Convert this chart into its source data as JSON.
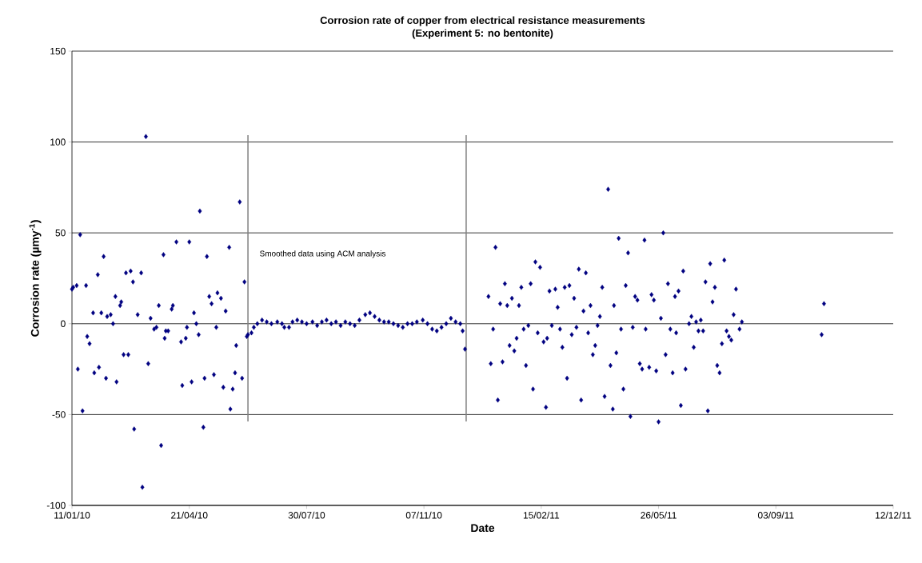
{
  "chart_data": {
    "type": "scatter",
    "title": "Corrosion rate of copper from electrical resistance measurements",
    "subtitle": "(Experiment 5: no bentonite)",
    "xlabel": "Date",
    "ylabel": "Corrosion rate (µmy$^{-1}$)",
    "xlim": [
      "2010-01-11",
      "2011-12-12"
    ],
    "ylim": [
      -100,
      150
    ],
    "xticks": [
      {
        "value": "2010-01-11",
        "label": "11/01/10"
      },
      {
        "value": "2010-04-21",
        "label": "21/04/10"
      },
      {
        "value": "2010-07-30",
        "label": "30/07/10"
      },
      {
        "value": "2010-11-07",
        "label": "07/11/10"
      },
      {
        "value": "2011-02-15",
        "label": "15/02/11"
      },
      {
        "value": "2011-05-26",
        "label": "26/05/11"
      },
      {
        "value": "2011-09-03",
        "label": "03/09/11"
      },
      {
        "value": "2011-12-12",
        "label": "12/12/11"
      }
    ],
    "yticks": [
      -100,
      -50,
      0,
      50,
      100,
      150
    ],
    "grid": "y",
    "marker": "diamond",
    "color": "#000080",
    "annotations": [
      "Smoothed data using ACM analysis"
    ],
    "ref_lines": [
      {
        "axis": "x",
        "value": "2010-06-10",
        "color": "#808080"
      },
      {
        "axis": "x",
        "value": "2010-12-13",
        "color": "#808080"
      }
    ],
    "x": [
      "2010-01-11",
      "2010-01-12",
      "2010-01-15",
      "2010-01-18",
      "2010-01-16",
      "2010-01-20",
      "2010-01-23",
      "2010-01-24",
      "2010-01-26",
      "2010-01-29",
      "2010-01-30",
      "2010-02-02",
      "2010-02-03",
      "2010-02-05",
      "2010-02-07",
      "2010-02-09",
      "2010-02-10",
      "2010-02-13",
      "2010-02-15",
      "2010-02-17",
      "2010-02-18",
      "2010-02-21",
      "2010-02-22",
      "2010-02-24",
      "2010-02-26",
      "2010-02-28",
      "2010-03-02",
      "2010-03-04",
      "2010-03-05",
      "2010-03-08",
      "2010-03-11",
      "2010-03-12",
      "2010-03-15",
      "2010-03-17",
      "2010-03-19",
      "2010-03-22",
      "2010-03-24",
      "2010-03-26",
      "2010-03-28",
      "2010-03-30",
      "2010-03-31",
      "2010-04-01",
      "2010-04-03",
      "2010-04-06",
      "2010-04-07",
      "2010-04-10",
      "2010-04-14",
      "2010-04-15",
      "2010-04-18",
      "2010-04-19",
      "2010-04-21",
      "2010-04-23",
      "2010-04-25",
      "2010-04-27",
      "2010-04-29",
      "2010-04-30",
      "2010-05-03",
      "2010-05-04",
      "2010-05-06",
      "2010-05-08",
      "2010-05-10",
      "2010-05-12",
      "2010-05-14",
      "2010-05-15",
      "2010-05-18",
      "2010-05-20",
      "2010-05-22",
      "2010-05-25",
      "2010-05-26",
      "2010-05-28",
      "2010-05-30",
      "2010-05-31",
      "2010-06-03",
      "2010-06-05",
      "2010-06-07",
      "2010-06-09",
      "2010-06-10",
      "2010-06-13",
      "2010-06-15",
      "2010-06-18",
      "2010-06-22",
      "2010-06-26",
      "2010-06-30",
      "2010-07-05",
      "2010-07-09",
      "2010-07-11",
      "2010-07-15",
      "2010-07-18",
      "2010-07-22",
      "2010-07-26",
      "2010-07-30",
      "2010-08-04",
      "2010-08-08",
      "2010-08-12",
      "2010-08-16",
      "2010-08-20",
      "2010-08-24",
      "2010-08-28",
      "2010-09-01",
      "2010-09-05",
      "2010-09-09",
      "2010-09-13",
      "2010-09-18",
      "2010-09-22",
      "2010-09-26",
      "2010-09-30",
      "2010-10-04",
      "2010-10-08",
      "2010-10-12",
      "2010-10-16",
      "2010-10-20",
      "2010-10-24",
      "2010-10-28",
      "2010-11-01",
      "2010-11-06",
      "2010-11-10",
      "2010-11-14",
      "2010-11-18",
      "2010-11-22",
      "2010-11-26",
      "2010-11-30",
      "2010-12-04",
      "2010-12-08",
      "2010-12-10",
      "2010-12-12",
      "2011-01-01",
      "2011-01-03",
      "2011-01-05",
      "2011-01-07",
      "2011-01-09",
      "2011-01-11",
      "2011-01-13",
      "2011-01-15",
      "2011-01-17",
      "2011-01-19",
      "2011-01-21",
      "2011-01-23",
      "2011-01-25",
      "2011-01-27",
      "2011-01-29",
      "2011-01-31",
      "2011-02-02",
      "2011-02-04",
      "2011-02-06",
      "2011-02-08",
      "2011-02-10",
      "2011-02-12",
      "2011-02-14",
      "2011-02-17",
      "2011-02-19",
      "2011-02-20",
      "2011-02-22",
      "2011-02-24",
      "2011-02-27",
      "2011-03-01",
      "2011-03-03",
      "2011-03-05",
      "2011-03-07",
      "2011-03-09",
      "2011-03-11",
      "2011-03-13",
      "2011-03-15",
      "2011-03-17",
      "2011-03-19",
      "2011-03-21",
      "2011-03-23",
      "2011-03-25",
      "2011-03-27",
      "2011-03-29",
      "2011-03-31",
      "2011-04-02",
      "2011-04-04",
      "2011-04-06",
      "2011-04-08",
      "2011-04-10",
      "2011-04-13",
      "2011-04-15",
      "2011-04-17",
      "2011-04-18",
      "2011-04-20",
      "2011-04-22",
      "2011-04-24",
      "2011-04-26",
      "2011-04-28",
      "2011-04-30",
      "2011-05-02",
      "2011-05-04",
      "2011-05-06",
      "2011-05-08",
      "2011-05-10",
      "2011-05-12",
      "2011-05-14",
      "2011-05-15",
      "2011-05-18",
      "2011-05-20",
      "2011-05-22",
      "2011-05-24",
      "2011-05-26",
      "2011-05-28",
      "2011-05-30",
      "2011-06-01",
      "2011-06-03",
      "2011-06-05",
      "2011-06-07",
      "2011-06-09",
      "2011-06-10",
      "2011-06-12",
      "2011-06-14",
      "2011-06-16",
      "2011-06-18",
      "2011-06-21",
      "2011-06-23",
      "2011-06-25",
      "2011-06-27",
      "2011-06-29",
      "2011-07-01",
      "2011-07-03",
      "2011-07-05",
      "2011-07-07",
      "2011-07-09",
      "2011-07-11",
      "2011-07-13",
      "2011-07-15",
      "2011-07-17",
      "2011-07-19",
      "2011-07-21",
      "2011-07-23",
      "2011-07-25",
      "2011-07-27",
      "2011-07-29",
      "2011-07-31",
      "2011-08-03",
      "2011-08-05",
      "2011-10-12",
      "2011-10-14"
    ],
    "values": [
      19,
      20,
      21,
      49,
      -25,
      -48,
      21,
      -7,
      -11,
      6,
      -27,
      27,
      -24,
      6,
      37,
      -30,
      4,
      5,
      0,
      15,
      -32,
      10,
      12,
      -17,
      28,
      -17,
      29,
      23,
      -58,
      5,
      28,
      -90,
      103,
      -22,
      3,
      -3,
      -2,
      10,
      -67,
      38,
      -8,
      -4,
      -4,
      8,
      10,
      45,
      -10,
      -34,
      -8,
      -2,
      45,
      -32,
      6,
      0,
      -6,
      62,
      -57,
      -30,
      37,
      15,
      11,
      -28,
      -2,
      17,
      14,
      -35,
      7,
      42,
      -47,
      -36,
      -27,
      -12,
      67,
      -30,
      23,
      -7,
      -6,
      -5,
      -2,
      0,
      2,
      1,
      0,
      1,
      0,
      -2,
      -2,
      1,
      2,
      1,
      0,
      1,
      -1,
      1,
      2,
      0,
      1,
      -1,
      1,
      0,
      -1,
      2,
      5,
      6,
      4,
      2,
      1,
      1,
      0,
      -1,
      -2,
      0,
      0,
      1,
      2,
      0,
      -3,
      -4,
      -2,
      0,
      3,
      1,
      0,
      -4,
      -14,
      15,
      -22,
      -3,
      42,
      -42,
      11,
      -21,
      22,
      10,
      -12,
      14,
      -15,
      -8,
      10,
      20,
      -3,
      -23,
      -1,
      22,
      -36,
      34,
      -5,
      31,
      -10,
      -46,
      -8,
      18,
      -1,
      19,
      9,
      -3,
      -13,
      20,
      -30,
      21,
      -6,
      14,
      -2,
      30,
      -42,
      7,
      28,
      -5,
      10,
      -17,
      -12,
      -1,
      4,
      20,
      -40,
      74,
      -23,
      -47,
      10,
      -16,
      47,
      -3,
      -36,
      21,
      39,
      -51,
      -2,
      15,
      13,
      -22,
      -25,
      46,
      -3,
      -24,
      16,
      13,
      -26,
      -54,
      3,
      50,
      -17,
      22,
      -3,
      -27,
      15,
      -5,
      18,
      -45,
      29,
      -25,
      0,
      4,
      -13,
      1,
      -4,
      2,
      -4,
      23,
      -48,
      33,
      12,
      20,
      -23,
      -27,
      -11,
      35,
      -4,
      -7,
      -9,
      5,
      19,
      -3,
      1,
      -6,
      11
    ]
  }
}
